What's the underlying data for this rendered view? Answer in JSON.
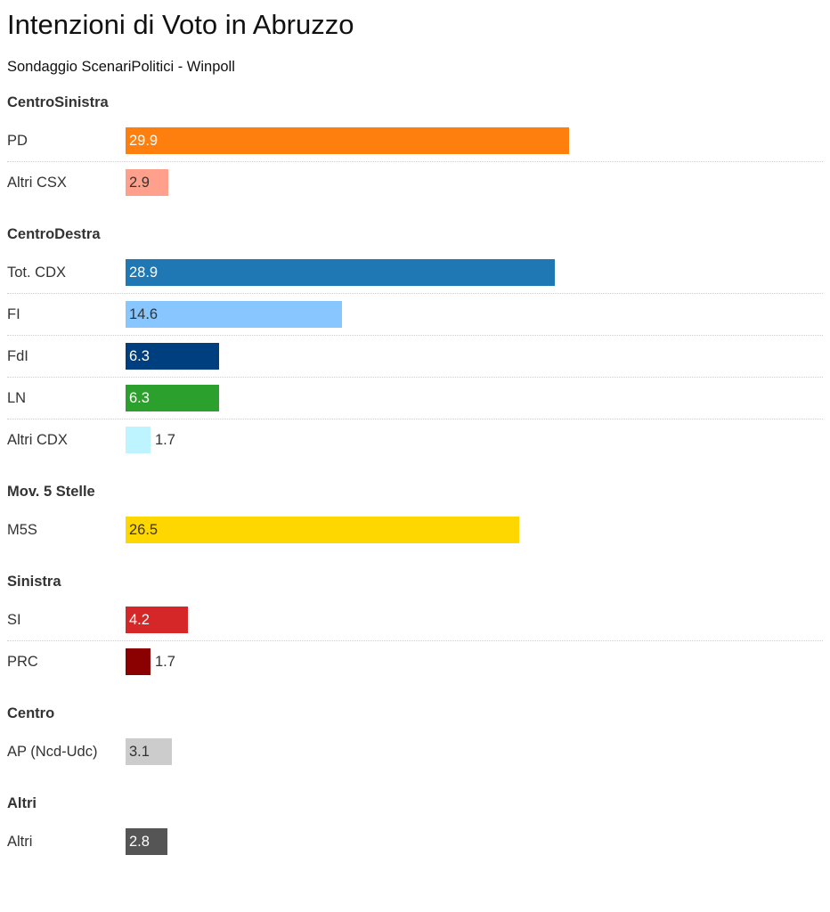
{
  "title": "Intenzioni di Voto in Abruzzo",
  "subtitle": "Sondaggio ScenariPolitici - Winpoll",
  "chart_data": {
    "type": "bar",
    "orientation": "horizontal",
    "xlim": [
      0,
      46
    ],
    "groups": [
      {
        "name": "CentroSinistra",
        "items": [
          {
            "label": "PD",
            "value": 29.9,
            "color": "#ff7f0e"
          },
          {
            "label": "Altri CSX",
            "value": 2.9,
            "color": "#ffa08c"
          }
        ]
      },
      {
        "name": "CentroDestra",
        "items": [
          {
            "label": "Tot. CDX",
            "value": 28.9,
            "color": "#1f77b4"
          },
          {
            "label": "FI",
            "value": 14.6,
            "color": "#87c6ff"
          },
          {
            "label": "FdI",
            "value": 6.3,
            "color": "#003f7f"
          },
          {
            "label": "LN",
            "value": 6.3,
            "color": "#2ca02c"
          },
          {
            "label": "Altri CDX",
            "value": 1.7,
            "color": "#bdf4ff"
          }
        ]
      },
      {
        "name": "Mov. 5 Stelle",
        "items": [
          {
            "label": "M5S",
            "value": 26.5,
            "color": "#ffd700"
          }
        ]
      },
      {
        "name": "Sinistra",
        "items": [
          {
            "label": "SI",
            "value": 4.2,
            "color": "#d62728"
          },
          {
            "label": "PRC",
            "value": 1.7,
            "color": "#8b0000"
          }
        ]
      },
      {
        "name": "Centro",
        "items": [
          {
            "label": "AP (Ncd-Udc)",
            "value": 3.1,
            "color": "#cccccc"
          }
        ]
      },
      {
        "name": "Altri",
        "items": [
          {
            "label": "Altri",
            "value": 2.8,
            "color": "#555555"
          }
        ]
      }
    ]
  }
}
